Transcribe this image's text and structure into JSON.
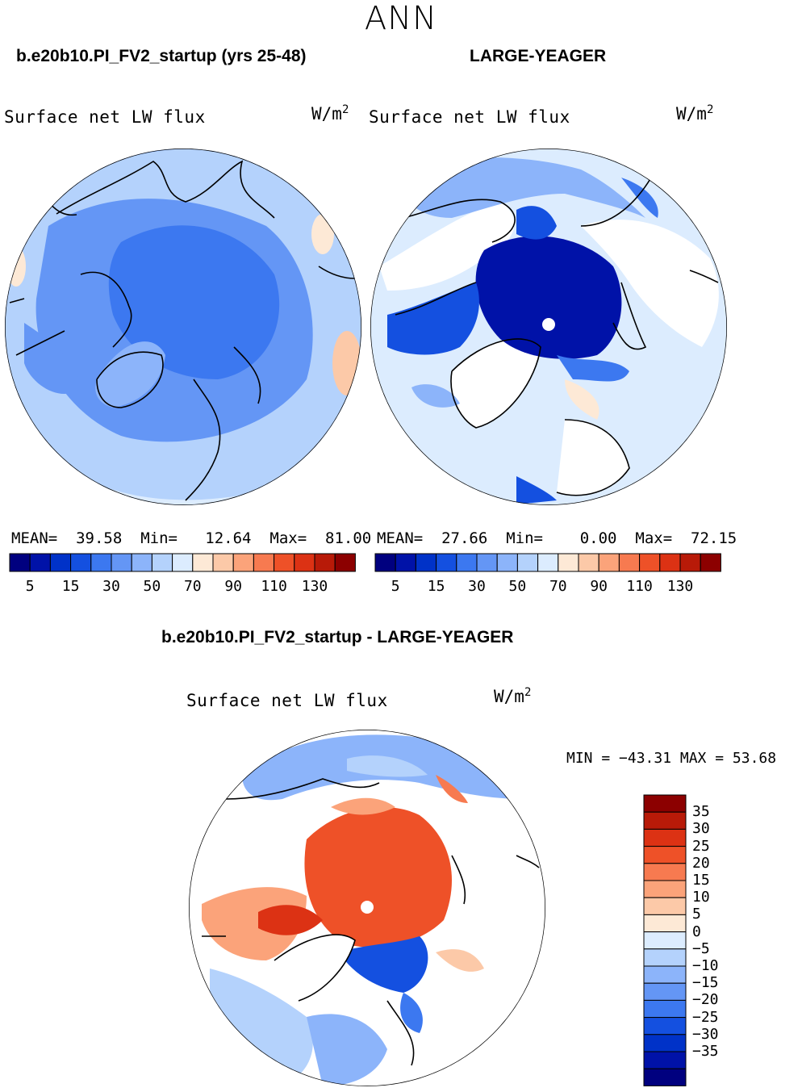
{
  "main_title": "ANN",
  "panels": [
    {
      "case_title": "b.e20b10.PI_FV2_startup (yrs 25-48)",
      "variable": "Surface net LW flux",
      "units": "W/m",
      "units_exp": "2",
      "stats": {
        "mean_label": "MEAN=",
        "mean": "39.58",
        "min_label": "Min=",
        "min": "12.64",
        "max_label": "Max=",
        "max": "81.00"
      }
    },
    {
      "case_title": "LARGE-YEAGER",
      "variable": "Surface net LW flux",
      "units": "W/m",
      "units_exp": "2",
      "stats": {
        "mean_label": "MEAN=",
        "mean": "27.66",
        "min_label": "Min=",
        "min": "0.00",
        "max_label": "Max=",
        "max": "72.15"
      }
    }
  ],
  "abs_colorbar": {
    "colors": [
      "#00007f",
      "#0012a8",
      "#0032c8",
      "#1450e0",
      "#3c78f0",
      "#6496f5",
      "#8cb4fa",
      "#b4d2fc",
      "#dcecfe",
      "#fde9d6",
      "#fcc9a8",
      "#fba37a",
      "#f77a50",
      "#ee5128",
      "#dc3214",
      "#b81a08",
      "#8c0000"
    ],
    "tick_labels": [
      "5",
      "15",
      "30",
      "50",
      "70",
      "90",
      "110",
      "130"
    ]
  },
  "diff": {
    "case_title": "b.e20b10.PI_FV2_startup - LARGE-YEAGER",
    "variable": "Surface net LW flux",
    "units": "W/m",
    "units_exp": "2",
    "minmax": "MIN = −43.31 MAX =  53.68",
    "colorbar": {
      "colors_top_to_bottom": [
        "#8c0000",
        "#b81a08",
        "#dc3214",
        "#ee5128",
        "#f77a50",
        "#fba37a",
        "#fcc9a8",
        "#fde9d6",
        "#dcecfe",
        "#b4d2fc",
        "#8cb4fa",
        "#6496f5",
        "#3c78f0",
        "#1450e0",
        "#0032c8",
        "#0012a8",
        "#00007f"
      ],
      "tick_labels": [
        "35",
        "30",
        "25",
        "20",
        "15",
        "10",
        "5",
        "0",
        "−5",
        "−10",
        "−15",
        "−20",
        "−25",
        "−30",
        "−35"
      ]
    }
  },
  "colors": {
    "deep_blue": "#0012a8",
    "mid_blue": "#6496f5",
    "light_blue": "#b4d2fc",
    "pale_blue": "#dcecfe",
    "orange": "#ee5128",
    "red_orange": "#dc3214",
    "pale_orange": "#fcc9a8"
  }
}
